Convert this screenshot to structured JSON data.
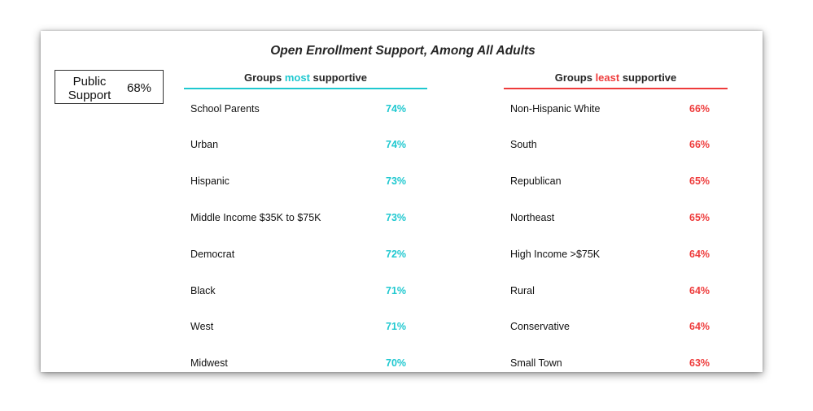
{
  "chart_data": {
    "type": "table",
    "title": "Open Enrollment Support, Among All Adults",
    "public_support": {
      "label": "Public Support",
      "value": "68%"
    },
    "groups": [
      {
        "id": "most",
        "heading_parts": [
          "Groups ",
          "most",
          " supportive"
        ],
        "accent": "#1fc8d0",
        "rows": [
          {
            "label": "School Parents",
            "value": 74,
            "text": "74%"
          },
          {
            "label": "Urban",
            "value": 74,
            "text": "74%"
          },
          {
            "label": "Hispanic",
            "value": 73,
            "text": "73%"
          },
          {
            "label": "Middle Income $35K to $75K",
            "value": 73,
            "text": "73%"
          },
          {
            "label": "Democrat",
            "value": 72,
            "text": "72%"
          },
          {
            "label": "Black",
            "value": 71,
            "text": "71%"
          },
          {
            "label": "West",
            "value": 71,
            "text": "71%"
          },
          {
            "label": "Midwest",
            "value": 70,
            "text": "70%"
          }
        ]
      },
      {
        "id": "least",
        "heading_parts": [
          "Groups ",
          "least",
          " supportive"
        ],
        "accent": "#ee3b3b",
        "rows": [
          {
            "label": "Non-Hispanic White",
            "value": 66,
            "text": "66%"
          },
          {
            "label": "South",
            "value": 66,
            "text": "66%"
          },
          {
            "label": "Republican",
            "value": 65,
            "text": "65%"
          },
          {
            "label": "Northeast",
            "value": 65,
            "text": "65%"
          },
          {
            "label": "High Income >$75K",
            "value": 64,
            "text": "64%"
          },
          {
            "label": "Rural",
            "value": 64,
            "text": "64%"
          },
          {
            "label": "Conservative",
            "value": 64,
            "text": "64%"
          },
          {
            "label": "Small Town",
            "value": 63,
            "text": "63%"
          }
        ]
      }
    ]
  }
}
